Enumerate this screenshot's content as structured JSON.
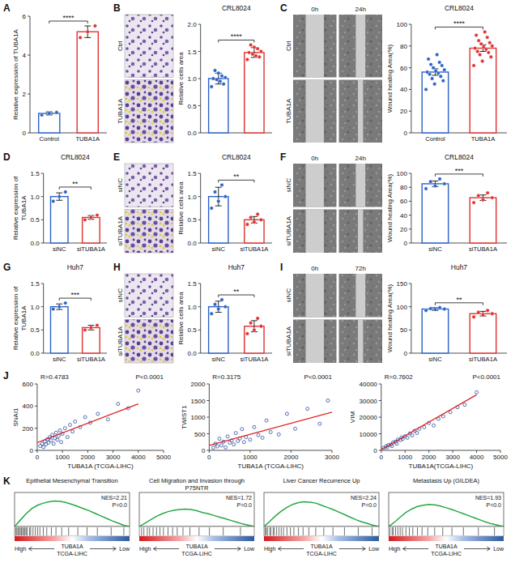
{
  "chart_data": [
    {
      "type": "bar",
      "panel": "A",
      "ylabel": "Relative expression of TUBA1A",
      "categories": [
        "Control",
        "TUBA1A"
      ],
      "values": [
        1.0,
        5.2
      ],
      "errors": [
        0.08,
        0.3
      ],
      "points": [
        [
          0.92,
          1.0,
          1.05
        ],
        [
          4.9,
          5.2,
          5.5
        ]
      ],
      "colors": [
        "#2a62c9",
        "#e0312f"
      ],
      "ylim": [
        0,
        6
      ],
      "yticks": [
        0,
        2,
        4,
        6
      ],
      "significance": "****"
    },
    {
      "type": "bar",
      "panel": "B",
      "title": "CRL8024",
      "ylabel": "Relative cells area",
      "categories": [
        null,
        null
      ],
      "values": [
        1.0,
        1.48
      ],
      "errors": [
        0.1,
        0.09
      ],
      "points": [
        [
          0.85,
          0.9,
          0.95,
          0.98,
          1.0,
          1.02,
          1.05,
          1.1,
          1.15
        ],
        [
          1.35,
          1.4,
          1.42,
          1.45,
          1.48,
          1.5,
          1.55,
          1.58,
          1.62
        ]
      ],
      "colors": [
        "#2a62c9",
        "#e0312f"
      ],
      "ylim": [
        0,
        2
      ],
      "yticks": [
        {
          "value": 0,
          "label": "0.0"
        },
        {
          "value": 0.5,
          "label": "0.5"
        },
        {
          "value": 1,
          "label": "1.0"
        },
        {
          "value": 1.5,
          "label": "1.5"
        },
        {
          "value": 2,
          "label": "2.0"
        }
      ],
      "significance": "****",
      "images": {
        "row_labels": [
          "Ctrl",
          "TUBA1A"
        ]
      }
    },
    {
      "type": "bar",
      "panel": "C",
      "title": "CRL8024",
      "ylabel": "Wound healing Area(%)",
      "categories": [
        "Control",
        "TUBA1A"
      ],
      "values": [
        56,
        78
      ],
      "errors": [
        3,
        3
      ],
      "points": [
        [
          40,
          45,
          48,
          50,
          52,
          54,
          55,
          56,
          57,
          58,
          60,
          62,
          63,
          65,
          68,
          72
        ],
        [
          62,
          66,
          70,
          72,
          74,
          75,
          77,
          78,
          79,
          80,
          82,
          83,
          85,
          88,
          90,
          93
        ]
      ],
      "colors": [
        "#2a62c9",
        "#e0312f"
      ],
      "ylim": [
        0,
        100
      ],
      "yticks": [
        0,
        20,
        40,
        60,
        80,
        100
      ],
      "significance": "****",
      "images": {
        "row_labels": [
          "Ctrl",
          "TUBA1A"
        ],
        "col_labels": [
          "0h",
          "24h"
        ]
      }
    },
    {
      "type": "bar",
      "panel": "D",
      "title": "CRL8024",
      "ylabel": "Relative expression of TUBA1A",
      "categories": [
        "siNC",
        "siTUBA1A"
      ],
      "values": [
        1.0,
        0.55
      ],
      "errors": [
        0.08,
        0.04
      ],
      "points": [
        [
          0.9,
          1.0,
          1.1
        ],
        [
          0.5,
          0.55,
          0.6
        ]
      ],
      "colors": [
        "#2a62c9",
        "#e0312f"
      ],
      "ylim": [
        0,
        1.5
      ],
      "yticks": [
        {
          "value": 0,
          "label": "0.0"
        },
        {
          "value": 0.5,
          "label": "0.5"
        },
        {
          "value": 1,
          "label": "1.0"
        },
        {
          "value": 1.5,
          "label": "1.5"
        }
      ],
      "significance": "**"
    },
    {
      "type": "bar",
      "panel": "E",
      "title": "CRL8024",
      "ylabel": "Relative cells area",
      "categories": [
        "siNC",
        "siTUBA1A"
      ],
      "values": [
        1.0,
        0.5
      ],
      "errors": [
        0.2,
        0.07
      ],
      "points": [
        [
          0.75,
          0.9,
          1.0,
          1.1,
          1.25
        ],
        [
          0.4,
          0.45,
          0.5,
          0.55,
          0.62
        ]
      ],
      "colors": [
        "#2a62c9",
        "#e0312f"
      ],
      "ylim": [
        0,
        1.5
      ],
      "yticks": [
        {
          "value": 0,
          "label": "0.0"
        },
        {
          "value": 0.5,
          "label": "0.5"
        },
        {
          "value": 1,
          "label": "1.0"
        },
        {
          "value": 1.5,
          "label": "1.5"
        }
      ],
      "significance": "**",
      "images": {
        "row_labels": [
          "siNC",
          "siTUBA1A"
        ]
      }
    },
    {
      "type": "bar",
      "panel": "F",
      "title": "CRL8024",
      "ylabel": "Wound healing Area(%)",
      "categories": [
        "siNC",
        "siTUBA1A"
      ],
      "values": [
        85,
        65
      ],
      "errors": [
        4,
        4
      ],
      "points": [
        [
          78,
          82,
          85,
          88,
          92
        ],
        [
          58,
          62,
          65,
          68,
          72
        ]
      ],
      "colors": [
        "#2a62c9",
        "#e0312f"
      ],
      "ylim": [
        0,
        100
      ],
      "yticks": [
        0,
        20,
        40,
        60,
        80,
        100
      ],
      "significance": "***",
      "images": {
        "row_labels": [
          "siNC",
          "siTUBA1A"
        ],
        "col_labels": [
          "0h",
          "24h"
        ]
      }
    },
    {
      "type": "bar",
      "panel": "G",
      "title": "Huh7",
      "ylabel": "Relative expression of TUBA1A",
      "categories": [
        "siNC",
        "siTUBA1A"
      ],
      "values": [
        1.0,
        0.55
      ],
      "errors": [
        0.06,
        0.05
      ],
      "points": [
        [
          0.95,
          1.0,
          1.08
        ],
        [
          0.5,
          0.55,
          0.6
        ]
      ],
      "colors": [
        "#2a62c9",
        "#e0312f"
      ],
      "ylim": [
        0,
        1.5
      ],
      "yticks": [
        {
          "value": 0,
          "label": "0.0"
        },
        {
          "value": 0.5,
          "label": "0.5"
        },
        {
          "value": 1,
          "label": "1.0"
        },
        {
          "value": 1.5,
          "label": "1.5"
        }
      ],
      "significance": "***"
    },
    {
      "type": "bar",
      "panel": "H",
      "title": "Huh7",
      "ylabel": "Relative cells area",
      "categories": [
        "siNC",
        "siTUBA1A"
      ],
      "values": [
        1.0,
        0.58
      ],
      "errors": [
        0.12,
        0.12
      ],
      "points": [
        [
          0.85,
          0.95,
          1.0,
          1.05,
          1.15
        ],
        [
          0.42,
          0.5,
          0.58,
          0.65,
          0.75
        ]
      ],
      "colors": [
        "#2a62c9",
        "#e0312f"
      ],
      "ylim": [
        0,
        1.5
      ],
      "yticks": [
        {
          "value": 0,
          "label": "0.0"
        },
        {
          "value": 0.5,
          "label": "0.5"
        },
        {
          "value": 1,
          "label": "1.0"
        },
        {
          "value": 1.5,
          "label": "1.5"
        }
      ],
      "significance": "**",
      "images": {
        "row_labels": [
          "siNC",
          "siTUBA1A"
        ]
      }
    },
    {
      "type": "bar",
      "panel": "I",
      "title": "Huh7",
      "ylabel": "Wound healing Area(%)",
      "categories": [
        "siNC",
        "siTUBA1A"
      ],
      "values": [
        95,
        85
      ],
      "errors": [
        3,
        5
      ],
      "points": [
        [
          92,
          94,
          95,
          96,
          98
        ],
        [
          78,
          82,
          85,
          88,
          92
        ]
      ],
      "colors": [
        "#2a62c9",
        "#e0312f"
      ],
      "ylim": [
        0,
        150
      ],
      "yticks": [
        0,
        50,
        100,
        150
      ],
      "significance": "**",
      "images": {
        "row_labels": [
          "siNC",
          "siTUBA1A"
        ],
        "col_labels": [
          "0h",
          "72h"
        ]
      }
    },
    {
      "type": "scatter",
      "panel": "J",
      "xlabel": "TUBA1A (TCGA-LIHC)",
      "ylabel": "SNAI1",
      "annotations": [
        "R=0.4783",
        "P<0.0001"
      ],
      "color": "#2b4fa0",
      "x": [
        120,
        200,
        250,
        300,
        350,
        400,
        450,
        500,
        550,
        600,
        650,
        700,
        750,
        800,
        850,
        900,
        950,
        1000,
        1100,
        1200,
        1300,
        1400,
        1500,
        1700,
        1900,
        2100,
        2400,
        2800,
        3200,
        3600,
        4000
      ],
      "values": [
        40,
        60,
        30,
        80,
        55,
        100,
        70,
        120,
        90,
        140,
        60,
        110,
        160,
        95,
        130,
        180,
        75,
        150,
        200,
        120,
        230,
        170,
        260,
        210,
        300,
        250,
        330,
        280,
        420,
        380,
        540
      ],
      "fit_line": {
        "x": [
          0,
          4000
        ],
        "y": [
          70,
          420
        ]
      },
      "xlim": [
        0,
        5000
      ],
      "xticks": [
        0,
        1000,
        2000,
        3000,
        4000,
        5000
      ],
      "ylim": [
        0,
        600
      ],
      "yticks": [
        0,
        200,
        400,
        600
      ]
    },
    {
      "type": "scatter",
      "xlabel": "TUBA1A (TCGA-LIHC)",
      "ylabel": "TWIST1",
      "annotations": [
        "R=0.3175",
        "P<0.0001"
      ],
      "color": "#2b4fa0",
      "x": [
        100,
        150,
        200,
        250,
        300,
        350,
        400,
        450,
        500,
        550,
        600,
        650,
        700,
        750,
        800,
        850,
        900,
        1000,
        1100,
        1200,
        1300,
        1400,
        1500,
        1700,
        1900,
        2100,
        2400,
        2700,
        2900
      ],
      "values": [
        80,
        200,
        120,
        350,
        150,
        260,
        90,
        420,
        230,
        300,
        180,
        520,
        280,
        360,
        640,
        250,
        400,
        320,
        700,
        460,
        380,
        900,
        550,
        480,
        1100,
        650,
        1250,
        800,
        1500
      ],
      "fit_line": {
        "x": [
          0,
          3000
        ],
        "y": [
          150,
          1150
        ]
      },
      "xlim": [
        0,
        3000
      ],
      "xticks": [
        0,
        1000,
        2000,
        3000
      ],
      "ylim": [
        0,
        2000
      ],
      "yticks": [
        0,
        500,
        1000,
        1500,
        2000
      ]
    },
    {
      "type": "scatter",
      "xlabel": "TUBA1A(TCGA-LIHC)",
      "ylabel": "VIM",
      "annotations": [
        "R=0.7602",
        "P<0.0001"
      ],
      "color": "#2b4fa0",
      "x": [
        100,
        200,
        250,
        300,
        400,
        450,
        500,
        600,
        650,
        700,
        800,
        850,
        900,
        1000,
        1100,
        1200,
        1300,
        1400,
        1500,
        1600,
        1800,
        2000,
        2200,
        2400,
        2600,
        2900,
        3200,
        3500,
        4000
      ],
      "values": [
        1500,
        2500,
        1800,
        3200,
        3500,
        2600,
        4800,
        5200,
        4000,
        6500,
        6200,
        7800,
        6800,
        8500,
        7600,
        10200,
        9000,
        11800,
        10500,
        13000,
        14000,
        16500,
        15000,
        19000,
        20500,
        23000,
        26000,
        27500,
        35000
      ],
      "fit_line": {
        "x": [
          0,
          4000
        ],
        "y": [
          500,
          33500
        ]
      },
      "xlim": [
        0,
        5000
      ],
      "xticks": [
        0,
        1000,
        2000,
        3000,
        4000,
        5000
      ],
      "ylim": [
        0,
        40000
      ],
      "yticks": [
        0,
        10000,
        20000,
        30000,
        40000
      ]
    },
    {
      "type": "line",
      "panel": "K",
      "title": "Epithelial Mesenchymal Transition",
      "annotations": [
        "NES=2.21",
        "P=0.0"
      ],
      "color": "#27a844",
      "x": [
        0,
        5,
        10,
        15,
        20,
        25,
        30,
        35,
        40,
        45,
        50,
        55,
        60,
        65,
        70,
        75,
        80,
        85,
        90,
        95,
        100
      ],
      "values": [
        0,
        0.15,
        0.3,
        0.42,
        0.5,
        0.55,
        0.58,
        0.6,
        0.59,
        0.56,
        0.52,
        0.47,
        0.42,
        0.37,
        0.31,
        0.25,
        0.19,
        0.13,
        0.08,
        0.03,
        0
      ],
      "hits": [
        1,
        2,
        3,
        4,
        5,
        6,
        7,
        8,
        9,
        10,
        11,
        13,
        14,
        16,
        18,
        20,
        22,
        25,
        28,
        32,
        36,
        41,
        47,
        55,
        63,
        72,
        84,
        95
      ],
      "xlim": [
        0,
        100
      ],
      "ylim": [
        0,
        0.8
      ],
      "tick_labels": false,
      "x_end_labels": [
        "High",
        "Low"
      ],
      "xlabel_lines": [
        "TUBA1A",
        "TCGA-LIHC"
      ]
    },
    {
      "type": "line",
      "title": "Cell Migration and Invasion through P75NTR",
      "annotations": [
        "NES=1.72",
        "P=0.0"
      ],
      "color": "#27a844",
      "x": [
        0,
        5,
        10,
        15,
        20,
        25,
        30,
        35,
        40,
        45,
        50,
        55,
        60,
        65,
        70,
        75,
        80,
        85,
        90,
        95,
        100
      ],
      "values": [
        0,
        0.08,
        0.16,
        0.24,
        0.3,
        0.35,
        0.38,
        0.4,
        0.41,
        0.4,
        0.37,
        0.33,
        0.3,
        0.26,
        0.22,
        0.18,
        0.14,
        0.1,
        0.06,
        0.03,
        0
      ],
      "hits": [
        2,
        4,
        7,
        9,
        12,
        15,
        18,
        21,
        25,
        29,
        33,
        38,
        44,
        52,
        61,
        73,
        88
      ],
      "xlim": [
        0,
        100
      ],
      "ylim": [
        0,
        0.8
      ],
      "tick_labels": false,
      "x_end_labels": [
        "High",
        "Low"
      ],
      "xlabel_lines": [
        "TUBA1A",
        "TCGA-LIHC"
      ]
    },
    {
      "type": "line",
      "title": "Liver Cancer Recurrence Up",
      "annotations": [
        "NES=2.24",
        "P=0.0"
      ],
      "color": "#27a844",
      "x": [
        0,
        5,
        10,
        15,
        20,
        25,
        30,
        35,
        40,
        45,
        50,
        55,
        60,
        65,
        70,
        75,
        80,
        85,
        90,
        95,
        100
      ],
      "values": [
        0,
        0.12,
        0.25,
        0.36,
        0.45,
        0.52,
        0.56,
        0.58,
        0.57,
        0.55,
        0.5,
        0.45,
        0.4,
        0.34,
        0.28,
        0.22,
        0.16,
        0.11,
        0.07,
        0.03,
        0
      ],
      "hits": [
        1,
        2,
        3,
        5,
        6,
        8,
        9,
        11,
        13,
        15,
        17,
        20,
        23,
        26,
        30,
        34,
        39,
        45,
        52,
        60,
        70,
        82,
        94
      ],
      "xlim": [
        0,
        100
      ],
      "ylim": [
        0,
        0.8
      ],
      "tick_labels": false,
      "x_end_labels": [
        "High",
        "Low"
      ],
      "xlabel_lines": [
        "TUBA1A",
        "TCGA-LIHC"
      ]
    },
    {
      "type": "line",
      "title": "Metastasis Up (GILDEA)",
      "annotations": [
        "NES=1.93",
        "P=0.0"
      ],
      "color": "#27a844",
      "x": [
        0,
        5,
        10,
        15,
        20,
        25,
        30,
        35,
        40,
        45,
        50,
        55,
        60,
        65,
        70,
        75,
        80,
        85,
        90,
        95,
        100
      ],
      "values": [
        0,
        0.1,
        0.22,
        0.33,
        0.41,
        0.47,
        0.5,
        0.52,
        0.51,
        0.48,
        0.44,
        0.4,
        0.35,
        0.3,
        0.25,
        0.2,
        0.15,
        0.1,
        0.06,
        0.03,
        0
      ],
      "hits": [
        1,
        3,
        4,
        6,
        8,
        10,
        12,
        15,
        18,
        21,
        25,
        29,
        34,
        40,
        47,
        55,
        65,
        78,
        92
      ],
      "xlim": [
        0,
        100
      ],
      "ylim": [
        0,
        0.8
      ],
      "tick_labels": false,
      "x_end_labels": [
        "High",
        "Low"
      ],
      "xlabel_lines": [
        "TUBA1A",
        "TCGA-LIHC"
      ]
    }
  ]
}
